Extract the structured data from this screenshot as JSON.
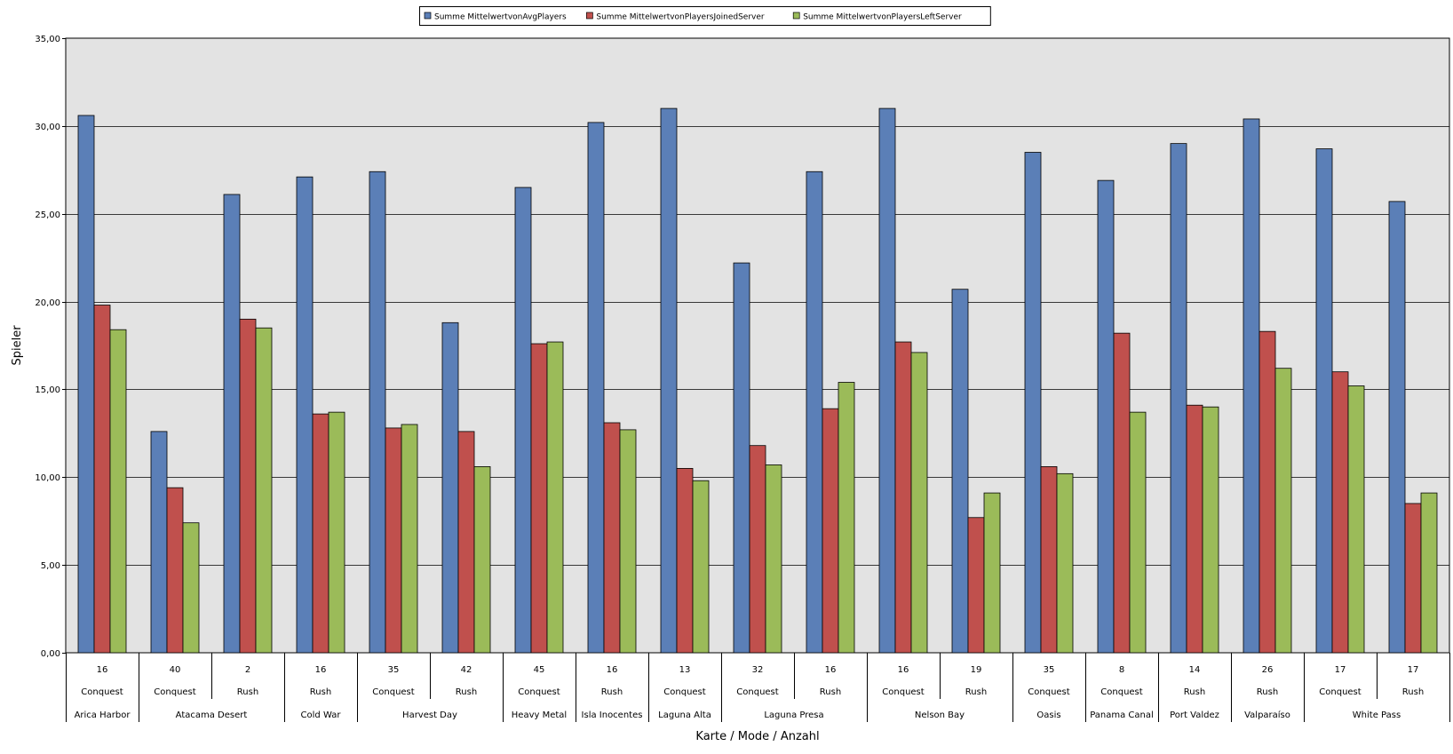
{
  "chart_data": {
    "type": "bar",
    "xlabel": "Karte / Mode / Anzahl",
    "ylabel": "Spieler",
    "ylim": [
      0,
      35
    ],
    "ytick_labels": [
      "0,00",
      "5,00",
      "10,00",
      "15,00",
      "20,00",
      "25,00",
      "30,00",
      "35,00"
    ],
    "grid": true,
    "legend_position": "top-center",
    "colors": {
      "plot_bg": "#e3e3e3",
      "grid": "#000000"
    },
    "series": [
      {
        "name": "Summe MittelwertvonAvgPlayers",
        "color": "#5b7fb7",
        "values": [
          30.6,
          12.6,
          26.1,
          27.1,
          27.4,
          18.8,
          26.5,
          30.2,
          31.0,
          22.2,
          27.4,
          31.0,
          20.7,
          28.5,
          26.9,
          29.0,
          30.4,
          28.7,
          25.7
        ]
      },
      {
        "name": "Summe MittelwertvonPlayersJoinedServer",
        "color": "#c0504d",
        "values": [
          19.8,
          9.4,
          19.0,
          13.6,
          12.8,
          12.6,
          17.6,
          13.1,
          10.5,
          11.8,
          13.9,
          17.7,
          7.7,
          10.6,
          18.2,
          14.1,
          18.3,
          16.0,
          8.5
        ]
      },
      {
        "name": "Summe MittelwertvonPlayersLeftServer",
        "color": "#9bbb59",
        "values": [
          18.4,
          7.4,
          18.5,
          13.7,
          13.0,
          10.6,
          17.7,
          12.7,
          9.8,
          10.7,
          15.4,
          17.1,
          9.1,
          10.2,
          13.7,
          14.0,
          16.2,
          15.2,
          9.1
        ]
      }
    ],
    "categories": [
      {
        "count": "16",
        "mode": "Conquest",
        "map": "Arica Harbor"
      },
      {
        "count": "40",
        "mode": "Conquest",
        "map": "Atacama Desert"
      },
      {
        "count": "2",
        "mode": "Rush",
        "map": "Atacama Desert"
      },
      {
        "count": "16",
        "mode": "Rush",
        "map": "Cold War"
      },
      {
        "count": "35",
        "mode": "Conquest",
        "map": "Harvest Day"
      },
      {
        "count": "42",
        "mode": "Rush",
        "map": "Harvest Day"
      },
      {
        "count": "45",
        "mode": "Conquest",
        "map": "Heavy Metal"
      },
      {
        "count": "16",
        "mode": "Rush",
        "map": "Isla Inocentes"
      },
      {
        "count": "13",
        "mode": "Conquest",
        "map": "Laguna Alta"
      },
      {
        "count": "32",
        "mode": "Conquest",
        "map": "Laguna Presa"
      },
      {
        "count": "16",
        "mode": "Rush",
        "map": "Laguna Presa"
      },
      {
        "count": "16",
        "mode": "Conquest",
        "map": "Nelson Bay"
      },
      {
        "count": "19",
        "mode": "Rush",
        "map": "Nelson Bay"
      },
      {
        "count": "35",
        "mode": "Conquest",
        "map": "Oasis"
      },
      {
        "count": "8",
        "mode": "Conquest",
        "map": "Panama Canal"
      },
      {
        "count": "14",
        "mode": "Rush",
        "map": "Port Valdez"
      },
      {
        "count": "26",
        "mode": "Rush",
        "map": "Valparaíso"
      },
      {
        "count": "17",
        "mode": "Conquest",
        "map": "White Pass"
      },
      {
        "count": "17",
        "mode": "Rush",
        "map": "White Pass"
      }
    ]
  }
}
